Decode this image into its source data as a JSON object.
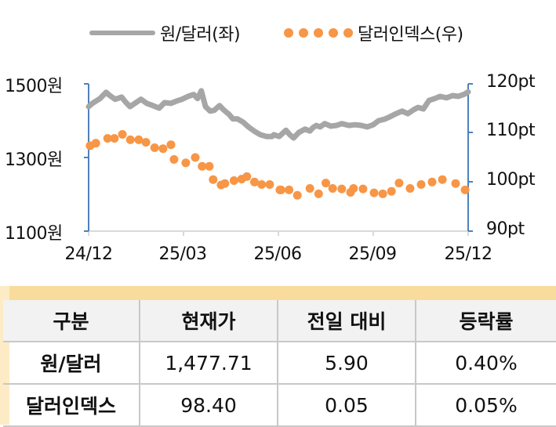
{
  "legend": {
    "series1_label": "원/달러(좌)",
    "series2_label": "달러인덱스(우)"
  },
  "colors": {
    "krw_line": "#a6a6a6",
    "dxy_dots": "#f79646",
    "axis": "#4f81bd",
    "gridline_x": "#d9d9d9",
    "table_band": "#f9dc9c",
    "table_header_bg": "#f2f2f2"
  },
  "axes": {
    "left_ticks": [
      "1500원",
      "1300원",
      "1100원"
    ],
    "right_ticks": [
      "120pt",
      "110pt",
      "100pt",
      "90pt"
    ],
    "x_ticks": [
      "24/12",
      "25/03",
      "25/06",
      "25/09",
      "25/12"
    ]
  },
  "chart_data": {
    "type": "line",
    "title": "",
    "xlabel": "",
    "ylabel": "원/달러",
    "ylabel_right": "달러인덱스",
    "x_range": [
      "24/12",
      "25/12"
    ],
    "categories": [
      "24/12",
      "25/03",
      "25/06",
      "25/09",
      "25/12"
    ],
    "ylim": [
      1100,
      1500
    ],
    "ylim_right": [
      90,
      120
    ],
    "grid": false,
    "legend_position": "top",
    "series": [
      {
        "name": "원/달러(좌)",
        "axis": "left",
        "style": "line",
        "x_frac": [
          0,
          0.01,
          0.03,
          0.046,
          0.056,
          0.07,
          0.087,
          0.097,
          0.109,
          0.122,
          0.138,
          0.153,
          0.169,
          0.186,
          0.2,
          0.217,
          0.231,
          0.246,
          0.262,
          0.277,
          0.287,
          0.297,
          0.308,
          0.32,
          0.331,
          0.345,
          0.355,
          0.37,
          0.38,
          0.392,
          0.407,
          0.421,
          0.436,
          0.452,
          0.469,
          0.483,
          0.488,
          0.502,
          0.52,
          0.53,
          0.54,
          0.554,
          0.57,
          0.583,
          0.591,
          0.6,
          0.61,
          0.622,
          0.638,
          0.653,
          0.667,
          0.686,
          0.702,
          0.719,
          0.734,
          0.75,
          0.764,
          0.78,
          0.795,
          0.81,
          0.826,
          0.841,
          0.857,
          0.868,
          0.882,
          0.897,
          0.912,
          0.926,
          0.943,
          0.959,
          0.974,
          0.99,
          1
        ],
        "values": [
          1438,
          1447,
          1460,
          1477,
          1468,
          1458,
          1464,
          1451,
          1438,
          1447,
          1458,
          1447,
          1441,
          1434,
          1449,
          1447,
          1453,
          1458,
          1466,
          1471,
          1460,
          1481,
          1438,
          1426,
          1428,
          1441,
          1430,
          1417,
          1405,
          1405,
          1396,
          1383,
          1372,
          1362,
          1357,
          1357,
          1362,
          1357,
          1374,
          1362,
          1353,
          1368,
          1377,
          1372,
          1381,
          1387,
          1383,
          1392,
          1385,
          1387,
          1392,
          1387,
          1389,
          1387,
          1383,
          1389,
          1400,
          1404,
          1411,
          1419,
          1426,
          1419,
          1430,
          1436,
          1432,
          1455,
          1460,
          1466,
          1462,
          1468,
          1466,
          1472,
          1478
        ]
      },
      {
        "name": "달러인덱스(우)",
        "axis": "right",
        "style": "dots",
        "x_frac": [
          0.004,
          0.019,
          0.05,
          0.068,
          0.089,
          0.11,
          0.132,
          0.151,
          0.174,
          0.196,
          0.217,
          0.225,
          0.256,
          0.281,
          0.299,
          0.318,
          0.328,
          0.349,
          0.359,
          0.383,
          0.403,
          0.417,
          0.437,
          0.456,
          0.477,
          0.504,
          0.507,
          0.528,
          0.55,
          0.583,
          0.606,
          0.625,
          0.643,
          0.667,
          0.69,
          0.698,
          0.723,
          0.752,
          0.775,
          0.798,
          0.818,
          0.847,
          0.876,
          0.905,
          0.932,
          0.967,
          0.992
        ],
        "values": [
          107.4,
          107.9,
          108.9,
          108.9,
          109.7,
          108.6,
          108.6,
          108.1,
          107.0,
          106.8,
          107.6,
          104.6,
          103.9,
          105.0,
          103.2,
          103.2,
          100.5,
          99.4,
          99.7,
          100.3,
          100.6,
          101.1,
          100.0,
          99.5,
          99.5,
          98.4,
          98.4,
          98.4,
          97.3,
          98.7,
          97.6,
          99.8,
          98.7,
          98.6,
          97.9,
          98.7,
          98.6,
          97.8,
          97.6,
          98.1,
          99.8,
          98.7,
          99.5,
          100.0,
          100.5,
          99.7,
          98.4
        ]
      }
    ]
  },
  "table": {
    "headers": [
      "구분",
      "현재가",
      "전일 대비",
      "등락률"
    ],
    "rows": [
      [
        "원/달러",
        "1,477.71",
        "5.90",
        "0.40%"
      ],
      [
        "달러인덱스",
        "98.40",
        "0.05",
        "0.05%"
      ]
    ]
  }
}
